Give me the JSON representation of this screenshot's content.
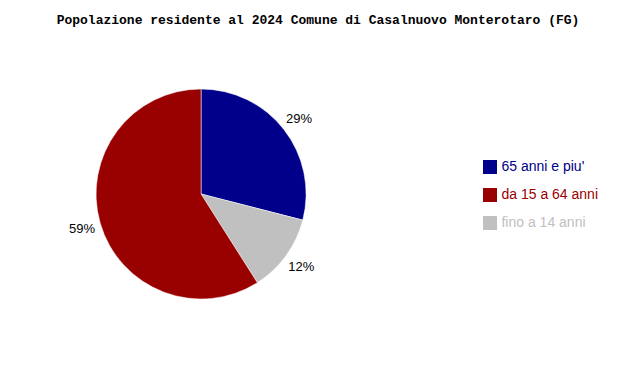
{
  "chart_data": {
    "type": "pie",
    "title": "Popolazione residente al 2024 Comune di Casalnuovo Monterotaro (FG)",
    "categories": [
      "65 anni e piu'",
      "fino a 14 anni",
      "da 15 a 64 anni"
    ],
    "values": [
      29,
      12,
      59
    ],
    "value_labels": [
      "29%",
      "12%",
      "59%"
    ],
    "colors": [
      "#00008B",
      "#C0C0C0",
      "#990000"
    ],
    "data_labels": true,
    "legend": "right"
  }
}
